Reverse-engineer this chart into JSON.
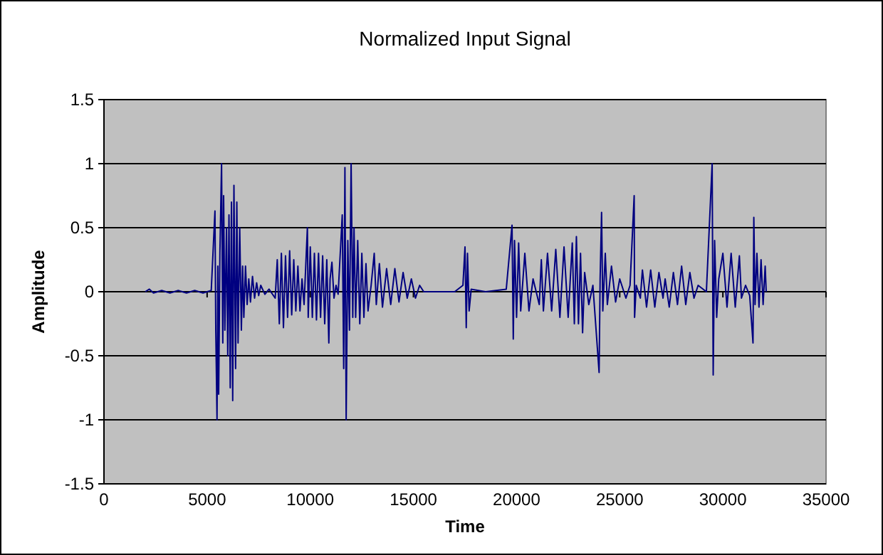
{
  "chart_data": {
    "type": "line",
    "title": "Normalized Input Signal",
    "xlabel": "Time",
    "ylabel": "Amplitude",
    "xlim": [
      0,
      35000
    ],
    "xticks": [
      0,
      5000,
      10000,
      15000,
      20000,
      25000,
      30000,
      35000
    ],
    "ylim": [
      -1.5,
      1.5
    ],
    "yticks": [
      -1.5,
      -1,
      -0.5,
      0,
      0.5,
      1,
      1.5
    ],
    "grid": "y",
    "color": "#000080",
    "x": [
      2000,
      2200,
      2400,
      2800,
      3200,
      3600,
      4000,
      4400,
      4800,
      5200,
      5380,
      5420,
      5480,
      5520,
      5560,
      5620,
      5700,
      5760,
      5800,
      5860,
      5940,
      6000,
      6060,
      6120,
      6180,
      6240,
      6300,
      6380,
      6440,
      6500,
      6580,
      6660,
      6720,
      6780,
      6860,
      6940,
      7020,
      7100,
      7200,
      7300,
      7400,
      7500,
      7600,
      7800,
      8000,
      8300,
      8400,
      8500,
      8600,
      8700,
      8800,
      8900,
      9000,
      9100,
      9200,
      9300,
      9400,
      9500,
      9600,
      9700,
      9860,
      9900,
      10000,
      10100,
      10200,
      10300,
      10400,
      10500,
      10600,
      10700,
      10800,
      10900,
      10960,
      11050,
      11150,
      11250,
      11350,
      11550,
      11620,
      11680,
      11740,
      11820,
      11900,
      11980,
      12060,
      12120,
      12200,
      12300,
      12400,
      12500,
      12600,
      12700,
      12800,
      12950,
      13100,
      13200,
      13350,
      13500,
      13700,
      13900,
      14100,
      14300,
      14500,
      14700,
      14900,
      15100,
      15300,
      15500,
      16000,
      17000,
      17400,
      17500,
      17560,
      17620,
      17700,
      17800,
      18500,
      19500,
      19780,
      19840,
      19900,
      20000,
      20100,
      20200,
      20400,
      20600,
      20800,
      21100,
      21200,
      21300,
      21500,
      21700,
      21900,
      22100,
      22300,
      22500,
      22700,
      22800,
      22900,
      23000,
      23100,
      23200,
      23300,
      23500,
      23700,
      24000,
      24050,
      24120,
      24180,
      24300,
      24400,
      24600,
      24800,
      25000,
      25300,
      25500,
      25700,
      25720,
      25800,
      26000,
      26100,
      26300,
      26500,
      26700,
      26900,
      27100,
      27200,
      27400,
      27600,
      27800,
      28000,
      28200,
      28400,
      28600,
      28800,
      29200,
      29480,
      29530,
      29600,
      29700,
      29800,
      30000,
      30200,
      30400,
      30600,
      30800,
      30900,
      31100,
      31300,
      31460,
      31500,
      31560,
      31650,
      31750,
      31850,
      31950,
      32050,
      32100
    ],
    "values": [
      0,
      0.02,
      -0.01,
      0.01,
      -0.01,
      0.01,
      -0.01,
      0.01,
      -0.01,
      0.01,
      0.63,
      -0.3,
      -1,
      0.2,
      -0.8,
      0.3,
      1,
      -0.4,
      0.75,
      -0.3,
      0.5,
      -0.5,
      0.6,
      -0.75,
      0.7,
      -0.85,
      0.83,
      -0.6,
      0.7,
      -0.4,
      0.5,
      -0.3,
      0.2,
      -0.2,
      0.2,
      -0.1,
      0.1,
      -0.08,
      0.12,
      -0.05,
      0.07,
      -0.03,
      0.05,
      -0.02,
      0.02,
      -0.05,
      0.25,
      -0.25,
      0.3,
      -0.28,
      0.28,
      -0.2,
      0.32,
      -0.18,
      0.25,
      -0.15,
      0.2,
      -0.15,
      0.1,
      -0.1,
      0.5,
      -0.2,
      0.35,
      -0.2,
      0.3,
      -0.22,
      0.3,
      -0.2,
      0.28,
      -0.25,
      0.25,
      -0.4,
      0.1,
      0.23,
      -0.05,
      0.05,
      -0.02,
      0.6,
      -0.6,
      0.97,
      -1,
      0.4,
      -0.3,
      1,
      -0.2,
      0.5,
      -0.2,
      0.4,
      -0.25,
      0.3,
      -0.2,
      0.22,
      -0.15,
      0.05,
      0.3,
      -0.1,
      0.22,
      -0.12,
      0.18,
      -0.1,
      0.18,
      -0.08,
      0.15,
      -0.05,
      0.1,
      -0.05,
      0.05,
      0,
      0,
      0,
      0.05,
      0.35,
      -0.28,
      0.3,
      -0.15,
      0.02,
      0,
      0.02,
      0.52,
      -0.37,
      0.4,
      -0.2,
      0.38,
      -0.15,
      0.3,
      -0.15,
      0.1,
      -0.1,
      0.25,
      -0.15,
      0.3,
      -0.15,
      0.33,
      -0.2,
      0.35,
      -0.2,
      0.38,
      -0.25,
      0.43,
      -0.25,
      0.3,
      -0.32,
      0.15,
      -0.1,
      0.05,
      -0.63,
      0.1,
      0.62,
      -0.15,
      0.3,
      -0.1,
      0.2,
      -0.08,
      0.1,
      -0.05,
      0.05,
      0.75,
      -0.2,
      0.05,
      -0.05,
      0.17,
      -0.12,
      0.17,
      -0.12,
      0.15,
      -0.05,
      0.1,
      -0.12,
      0.15,
      -0.1,
      0.2,
      -0.1,
      0.15,
      -0.05,
      0.05,
      0,
      1,
      -0.65,
      0.4,
      -0.2,
      0.1,
      0.3,
      -0.12,
      0.3,
      -0.12,
      0.28,
      -0.05,
      0.05,
      -0.03,
      -0.4,
      0.58,
      -0.1,
      0.3,
      -0.12,
      0.25,
      -0.1,
      0.2,
      0
    ]
  }
}
